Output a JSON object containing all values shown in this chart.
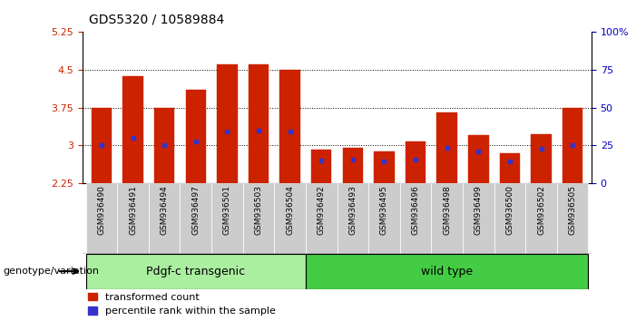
{
  "title": "GDS5320 / 10589884",
  "categories": [
    "GSM936490",
    "GSM936491",
    "GSM936494",
    "GSM936497",
    "GSM936501",
    "GSM936503",
    "GSM936504",
    "GSM936492",
    "GSM936493",
    "GSM936495",
    "GSM936496",
    "GSM936498",
    "GSM936499",
    "GSM936500",
    "GSM936502",
    "GSM936505"
  ],
  "transformed_counts": [
    3.75,
    4.38,
    3.75,
    4.1,
    4.6,
    4.6,
    4.5,
    2.92,
    2.95,
    2.88,
    3.07,
    3.65,
    3.2,
    2.85,
    3.22,
    3.75
  ],
  "percentile_ranks": [
    3.0,
    3.14,
    3.0,
    3.07,
    3.27,
    3.3,
    3.27,
    2.7,
    2.72,
    2.68,
    2.72,
    2.95,
    2.88,
    2.68,
    2.93,
    3.0
  ],
  "baseline": 2.25,
  "ylim_left": [
    2.25,
    5.25
  ],
  "ylim_right": [
    0,
    100
  ],
  "yticks_left": [
    2.25,
    3.0,
    3.75,
    4.5,
    5.25
  ],
  "yticks_right": [
    0,
    25,
    50,
    75,
    100
  ],
  "ytick_labels_left": [
    "2.25",
    "3",
    "3.75",
    "4.5",
    "5.25"
  ],
  "ytick_labels_right": [
    "0",
    "25",
    "50",
    "75",
    "100%"
  ],
  "bar_color": "#cc2200",
  "percentile_color": "#3333cc",
  "group1_label": "Pdgf-c transgenic",
  "group2_label": "wild type",
  "group1_color": "#aaeea0",
  "group2_color": "#44cc44",
  "group1_count": 7,
  "group2_count": 9,
  "genotype_label": "genotype/variation",
  "legend_items": [
    "transformed count",
    "percentile rank within the sample"
  ],
  "bar_width": 0.65,
  "grid_color": "black",
  "background_plot": "#ffffff",
  "xtick_bg": "#cccccc",
  "tick_label_color_left": "#cc2200",
  "tick_label_color_right": "#0000cc"
}
